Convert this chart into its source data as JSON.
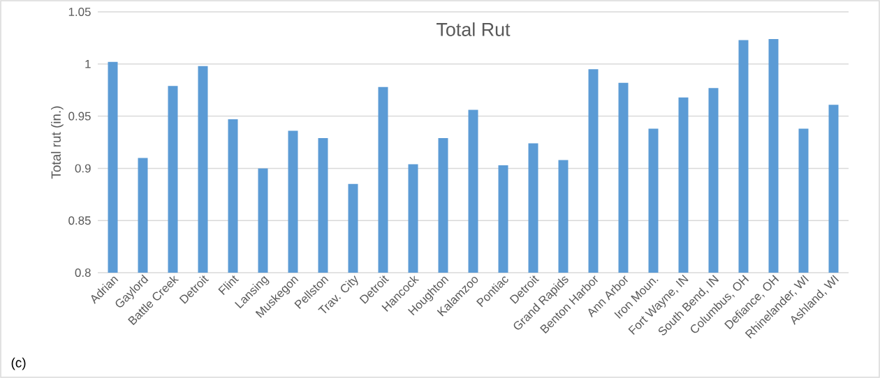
{
  "chart_data": {
    "type": "bar",
    "title": "Total Rut",
    "ylabel": "Total rut (in.)",
    "categories": [
      "Adrian",
      "Gaylord",
      "Battle Creek",
      "Detroit",
      "Flint",
      "Lansing",
      "Muskegon",
      "Pellston",
      "Trav. City",
      "Detroit",
      "Hancock",
      "Houghton",
      "Kalamzoo",
      "Pontiac",
      "Detroit",
      "Grand Rapids",
      "Benton Harbor",
      "Ann Arbor",
      "Iron Moun.",
      "Fort Wayne, IN",
      "South Bend, IN",
      "Columbus, OH",
      "Defiance, OH",
      "Rhinelander, WI",
      "Ashland, WI"
    ],
    "values": [
      1.002,
      0.91,
      0.979,
      0.998,
      0.947,
      0.9,
      0.936,
      0.929,
      0.885,
      0.978,
      0.904,
      0.929,
      0.956,
      0.903,
      0.924,
      0.908,
      0.995,
      0.982,
      0.938,
      0.968,
      0.977,
      1.023,
      1.024,
      0.938,
      0.961
    ],
    "color": "#5b9bd5",
    "ylim": [
      0.8,
      1.05
    ],
    "yticks": [
      0.8,
      0.85,
      0.9,
      0.95,
      1,
      1.05
    ],
    "grid": "y",
    "annotations": [
      "(c)"
    ]
  }
}
